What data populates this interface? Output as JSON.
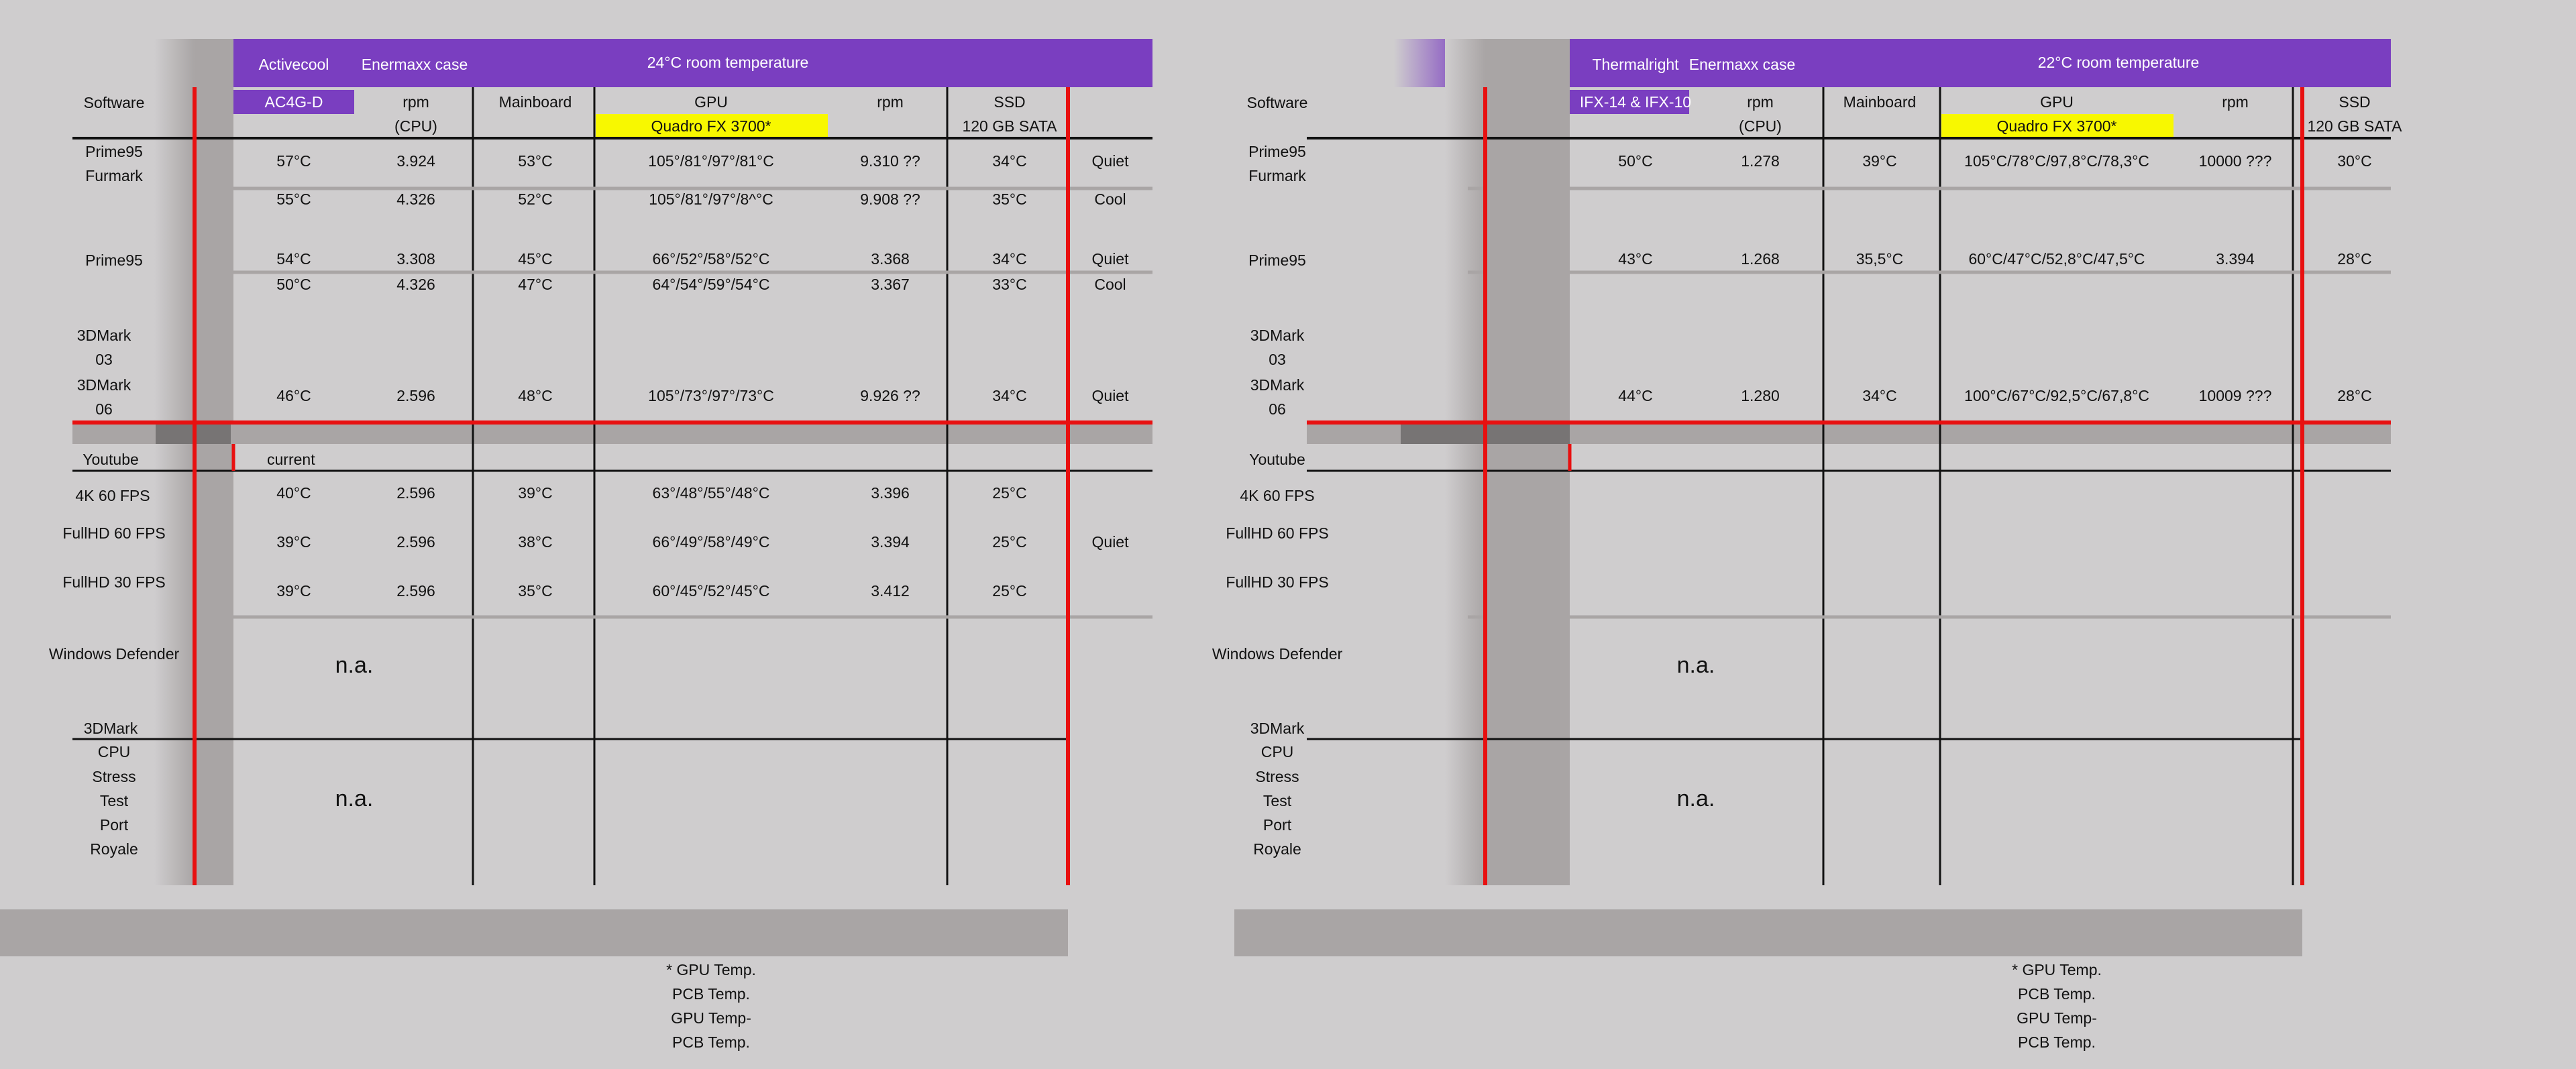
{
  "colors": {
    "banner": "#7a3ec0",
    "highlight": "#f8f800",
    "red_line": "#e81010",
    "grey_band": "#a9a5a5",
    "dark_cell": "#777474"
  },
  "panels": [
    {
      "header": {
        "brand": "Activecool",
        "case": "Enermaxx case",
        "temp": "24°C room temperature"
      },
      "columns": {
        "software": "Software",
        "model": "AC4G-D",
        "rpm": "rpm",
        "rpm_sub": "(CPU)",
        "mainboard": "Mainboard",
        "gpu": "GPU",
        "gpu_sub": "Quadro FX 3700*",
        "rpm2": "rpm",
        "ssd": "SSD",
        "ssd_sub": "120 GB SATA"
      },
      "rows": [
        {
          "cpu": "57°C",
          "rpm": "3.924",
          "mb": "53°C",
          "gpu": "105°/81°/97°/81°C",
          "rpm2": "9.310 ??",
          "ssd": "34°C",
          "mode": "Quiet"
        },
        {
          "cpu": "55°C",
          "rpm": "4.326",
          "mb": "52°C",
          "gpu": "105°/81°/97°/8^°C",
          "rpm2": "9.908 ??",
          "ssd": "35°C",
          "mode": "Cool"
        },
        {
          "cpu": "54°C",
          "rpm": "3.308",
          "mb": "45°C",
          "gpu": "66°/52°/58°/52°C",
          "rpm2": "3.368",
          "ssd": "34°C",
          "mode": "Quiet"
        },
        {
          "cpu": "50°C",
          "rpm": "4.326",
          "mb": "47°C",
          "gpu": "64°/54°/59°/54°C",
          "rpm2": "3.367",
          "ssd": "33°C",
          "mode": "Cool"
        },
        {
          "cpu": "46°C",
          "rpm": "2.596",
          "mb": "48°C",
          "gpu": "105°/73°/97°/73°C",
          "rpm2": "9.926 ??",
          "ssd": "34°C",
          "mode": "Quiet"
        },
        {
          "cpu": "40°C",
          "rpm": "2.596",
          "mb": "39°C",
          "gpu": "63°/48°/55°/48°C",
          "rpm2": "3.396",
          "ssd": "25°C",
          "mode": ""
        },
        {
          "cpu": "39°C",
          "rpm": "2.596",
          "mb": "38°C",
          "gpu": "66°/49°/58°/49°C",
          "rpm2": "3.394",
          "ssd": "25°C",
          "mode": "Quiet"
        },
        {
          "cpu": "39°C",
          "rpm": "2.596",
          "mb": "35°C",
          "gpu": "60°/45°/52°/45°C",
          "rpm2": "3.412",
          "ssd": "25°C",
          "mode": ""
        }
      ],
      "current": "current"
    },
    {
      "header": {
        "brand": "Thermalright",
        "case": "Enermaxx case",
        "temp": "22°C room temperature"
      },
      "columns": {
        "software": "Software",
        "model": "IFX-14 & IFX-10",
        "rpm": "rpm",
        "rpm_sub": "(CPU)",
        "mainboard": "Mainboard",
        "gpu": "GPU",
        "gpu_sub": "Quadro FX 3700*",
        "rpm2": "rpm",
        "ssd": "SSD",
        "ssd_sub": "120 GB SATA"
      },
      "rows": [
        {
          "cpu": "50°C",
          "rpm": "1.278",
          "mb": "39°C",
          "gpu": "105°C/78°C/97,8°C/78,3°C",
          "rpm2": "10000 ???",
          "ssd": "30°C",
          "mode": ""
        },
        {
          "cpu": "",
          "rpm": "",
          "mb": "",
          "gpu": "",
          "rpm2": "",
          "ssd": "",
          "mode": ""
        },
        {
          "cpu": "43°C",
          "rpm": "1.268",
          "mb": "35,5°C",
          "gpu": "60°C/47°C/52,8°C/47,5°C",
          "rpm2": "3.394",
          "ssd": "28°C",
          "mode": ""
        },
        {
          "cpu": "",
          "rpm": "",
          "mb": "",
          "gpu": "",
          "rpm2": "",
          "ssd": "",
          "mode": ""
        },
        {
          "cpu": "44°C",
          "rpm": "1.280",
          "mb": "34°C",
          "gpu": "100°C/67°C/92,5°C/67,8°C",
          "rpm2": "10009 ???",
          "ssd": "28°C",
          "mode": ""
        },
        {
          "cpu": "",
          "rpm": "",
          "mb": "",
          "gpu": "",
          "rpm2": "",
          "ssd": "",
          "mode": ""
        },
        {
          "cpu": "",
          "rpm": "",
          "mb": "",
          "gpu": "",
          "rpm2": "",
          "ssd": "",
          "mode": ""
        },
        {
          "cpu": "",
          "rpm": "",
          "mb": "",
          "gpu": "",
          "rpm2": "",
          "ssd": "",
          "mode": ""
        }
      ],
      "current": ""
    }
  ],
  "software_labels": {
    "prime95": "Prime95",
    "furmark": "Furmark",
    "prime95b": "Prime95",
    "dmark03a": "3DMark",
    "dmark03b": "03",
    "dmark06a": "3DMark",
    "dmark06b": "06",
    "youtube": "Youtube",
    "k4": "4K 60 FPS",
    "fhd60": "FullHD 60 FPS",
    "fhd30": "FullHD 30 FPS",
    "wd": "Windows Defender",
    "dmark": "3DMark",
    "cpu": "CPU",
    "stress": "Stress",
    "test": "Test",
    "port": "Port",
    "royale": "Royale"
  },
  "na": "n.a.",
  "footnote": [
    "* GPU Temp.",
    "PCB Temp.",
    "GPU Temp-",
    "PCB Temp."
  ]
}
